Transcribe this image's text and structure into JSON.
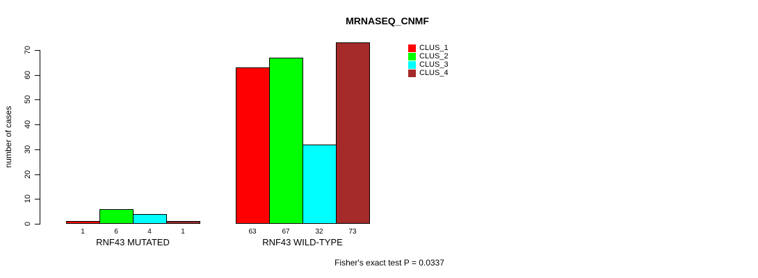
{
  "title": "MRNASEQ_CNMF",
  "footer": "Fisher's exact test P = 0.0337",
  "chart_data": {
    "type": "bar",
    "title": "MRNASEQ_CNMF",
    "xlabel": "",
    "ylabel": "number of cases",
    "ylim": [
      0,
      70
    ],
    "yticks": [
      0,
      10,
      20,
      30,
      40,
      50,
      60,
      70
    ],
    "grid": false,
    "legend_position": "top-right",
    "categories": [
      "RNF43 MUTATED",
      "RNF43 WILD-TYPE"
    ],
    "series": [
      {
        "name": "CLUS_1",
        "color": "#FF0000",
        "values": [
          1,
          63
        ]
      },
      {
        "name": "CLUS_2",
        "color": "#00FF00",
        "values": [
          6,
          67
        ]
      },
      {
        "name": "CLUS_3",
        "color": "#00FFFF",
        "values": [
          4,
          32
        ]
      },
      {
        "name": "CLUS_4",
        "color": "#A52A2A",
        "values": [
          1,
          73
        ]
      }
    ],
    "groups": [
      {
        "label": "RNF43 MUTATED",
        "bar_value_labels": [
          "1",
          "6",
          "4",
          "1"
        ]
      },
      {
        "label": "RNF43 WILD-TYPE",
        "bar_value_labels": [
          "63",
          "67",
          "32",
          "73"
        ]
      }
    ],
    "legend": [
      {
        "label": "CLUS_1",
        "color": "#FF0000"
      },
      {
        "label": "CLUS_2",
        "color": "#00FF00"
      },
      {
        "label": "CLUS_3",
        "color": "#00FFFF"
      },
      {
        "label": "CLUS_4",
        "color": "#A52A2A"
      }
    ],
    "annotation": "Fisher's exact test P = 0.0337"
  }
}
